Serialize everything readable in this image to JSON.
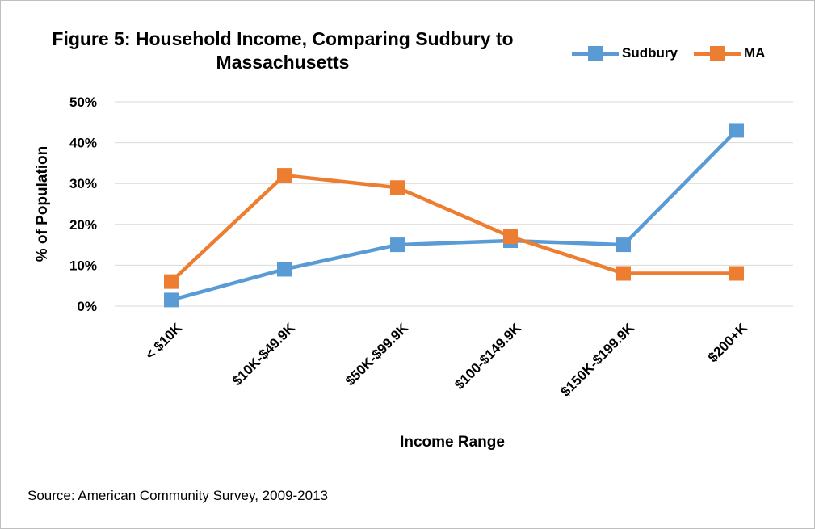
{
  "chart_data": {
    "type": "line",
    "title": "Figure 5: Household Income, Comparing Sudbury to Massachusetts",
    "title_lines": [
      "Figure 5: Household Income, Comparing Sudbury to",
      "Massachusetts"
    ],
    "xlabel": "Income Range",
    "ylabel": "% of Population",
    "categories": [
      "< $10K",
      "$10K-$49.9K",
      "$50K-$99.9K",
      "$100-$149.9K",
      "$150K-$199.9K",
      "$200+K"
    ],
    "ylim": [
      0,
      50
    ],
    "yticks": [
      0,
      10,
      20,
      30,
      40,
      50
    ],
    "ytick_labels": [
      "0%",
      "10%",
      "20%",
      "30%",
      "40%",
      "50%"
    ],
    "grid": true,
    "legend_position": "top-right",
    "series": [
      {
        "name": "Sudbury",
        "color": "#5b9bd5",
        "values": [
          1.5,
          9,
          15,
          16,
          15,
          43
        ]
      },
      {
        "name": "MA",
        "color": "#ed7d31",
        "values": [
          6,
          32,
          29,
          17,
          8,
          8
        ]
      }
    ]
  },
  "source": "Source: American Community Survey, 2009-2013"
}
